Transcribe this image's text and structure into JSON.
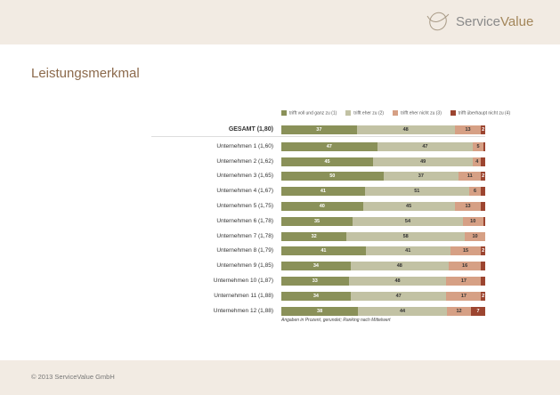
{
  "brand": {
    "name_part1": "Service",
    "name_part2": "Value"
  },
  "title": "Leistungsmerkmal",
  "footer": "© 2013 ServiceValue GmbH",
  "chart_data": {
    "type": "bar",
    "stacked": true,
    "orientation": "horizontal",
    "legend": [
      "trifft voll und ganz zu (1)",
      "trifft eher zu (2)",
      "trifft eher nicht zu (3)",
      "trifft überhaupt nicht zu (4)"
    ],
    "colors": [
      "#8a9159",
      "#c2c2a4",
      "#d6a085",
      "#9c4530"
    ],
    "categories": [
      "GESAMT (1,80)",
      "Unternehmen 1 (1,60)",
      "Unternehmen 2 (1,62)",
      "Unternehmen 3 (1,65)",
      "Unternehmen 4 (1,67)",
      "Unternehmen 5 (1,75)",
      "Unternehmen 6 (1,78)",
      "Unternehmen 7 (1,78)",
      "Unternehmen 8 (1,79)",
      "Unternehmen 9 (1,85)",
      "Unternehmen 10 (1,87)",
      "Unternehmen 11 (1,88)",
      "Unternehmen 12 (1,88)"
    ],
    "values": [
      [
        37,
        48,
        13,
        2
      ],
      [
        47,
        47,
        5,
        1
      ],
      [
        45,
        49,
        4,
        2
      ],
      [
        50,
        37,
        11,
        2
      ],
      [
        41,
        51,
        6,
        2
      ],
      [
        40,
        45,
        13,
        2
      ],
      [
        35,
        54,
        10,
        1
      ],
      [
        32,
        58,
        10,
        0
      ],
      [
        41,
        41,
        15,
        2
      ],
      [
        34,
        48,
        16,
        2
      ],
      [
        33,
        48,
        17,
        2
      ],
      [
        34,
        47,
        17,
        2
      ],
      [
        38,
        44,
        12,
        7
      ]
    ],
    "labels": [
      [
        "37",
        "48",
        "13",
        "2"
      ],
      [
        "47",
        "47",
        "5",
        ""
      ],
      [
        "45",
        "49",
        "4",
        ""
      ],
      [
        "50",
        "37",
        "11",
        "2"
      ],
      [
        "41",
        "51",
        "6",
        ""
      ],
      [
        "40",
        "45",
        "13",
        ""
      ],
      [
        "35",
        "54",
        "10",
        ""
      ],
      [
        "32",
        "58",
        "10",
        ""
      ],
      [
        "41",
        "41",
        "15",
        "2"
      ],
      [
        "34",
        "48",
        "16",
        ""
      ],
      [
        "33",
        "48",
        "17",
        ""
      ],
      [
        "34",
        "47",
        "17",
        "2"
      ],
      [
        "38",
        "44",
        "12",
        "7"
      ]
    ],
    "note": "Angaben in Prozent, gerundet; Ranking nach Mittelwert",
    "xlim": [
      0,
      100
    ]
  }
}
